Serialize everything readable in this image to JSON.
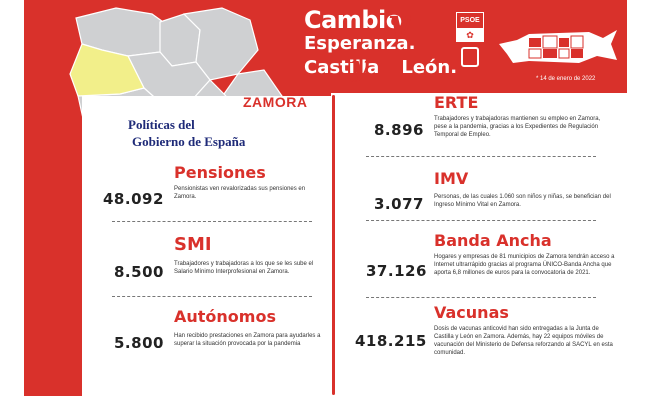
{
  "header": {
    "line1": "Cambio",
    "line2": "Esperanza.",
    "line3a": "Castilla",
    "line3b": "León.",
    "y_glyph": "y",
    "party_logo": "PSOE",
    "date": "* 14 de enero de 2022"
  },
  "region": {
    "name": "ZAMORA",
    "subtitle_line1": "Políticas del",
    "subtitle_line2": "Gobierno de España"
  },
  "colors": {
    "brand_red": "#d9312b",
    "highlight_province": "#f2ef8a",
    "map_gray": "#cfd0d2",
    "navy": "#1e2a78"
  },
  "left_items": [
    {
      "value": "48.092",
      "title": "Pensiones",
      "desc": "Pensionistas ven revalorizadas sus pensiones en Zamora."
    },
    {
      "value": "8.500",
      "title": "SMI",
      "desc": "Trabajadores y trabajadoras a los que se les sube el Salario Mínimo Interprofesional en Zamora."
    },
    {
      "value": "5.800",
      "title": "Autónomos",
      "desc": "Han recibido prestaciones en Zamora para ayudarles a superar la situación provocada por la pandemia"
    }
  ],
  "right_items": [
    {
      "value": "8.896",
      "title": "ERTE",
      "desc": "Trabajadores y trabajadoras mantienen su empleo en Zamora, pese a la pandemia, gracias a los Expedientes de Regulación Temporal de Empleo."
    },
    {
      "value": "3.077",
      "title": "IMV",
      "desc": "Personas, de las cuales 1.060 son niños y niñas, se benefician del Ingreso Mínimo Vital en Zamora."
    },
    {
      "value": "37.126",
      "title": "Banda Ancha",
      "desc": "Hogares y empresas de 81 municipios de Zamora tendrán acceso a Internet ultrarrápido gracias al programa ÚNICO-Banda Ancha que aporta 6,8 millones de euros para la convocatoria de 2021."
    },
    {
      "value": "418.215",
      "title": "Vacunas",
      "desc": "Dosis de vacunas anticovid han sido entregadas a la Junta de Castilla y León en Zamora. Además, hay 22 equipos móviles de vacunación del Ministerio de Defensa reforzando al SACYL en esta comunidad."
    }
  ]
}
